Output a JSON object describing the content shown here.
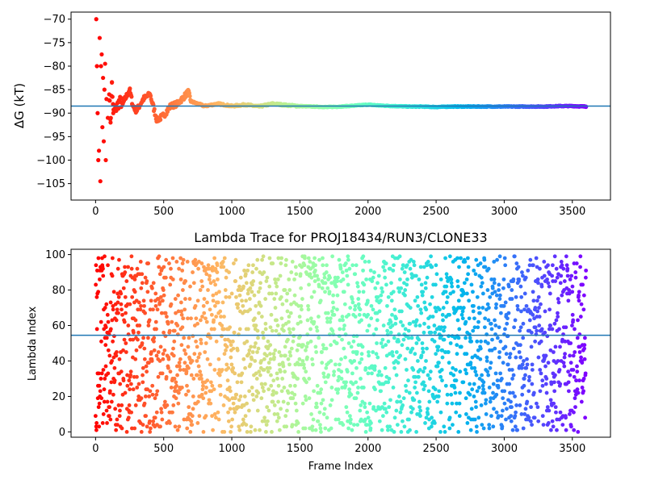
{
  "chart_data": [
    {
      "type": "scatter",
      "title": "",
      "xlabel": "",
      "ylabel": "ΔG (kT)",
      "xlim": [
        -180,
        3780
      ],
      "ylim": [
        -108.5,
        -68.5
      ],
      "xticks": [
        0,
        500,
        1000,
        1500,
        2000,
        2500,
        3000,
        3500
      ],
      "yticks": [
        -105,
        -100,
        -95,
        -90,
        -85,
        -80,
        -75,
        -70
      ],
      "ytick_labels": [
        "−105",
        "−100",
        "−95",
        "−90",
        "−85",
        "−80",
        "−75",
        "−70"
      ],
      "reference_line_y": -88.5,
      "colormap": "rainbow (red at frame 0 to violet at last frame)",
      "series": [
        {
          "points": [
            [
              5,
              -70
            ],
            [
              10,
              -80
            ],
            [
              15,
              -90
            ],
            [
              20,
              -100
            ],
            [
              25,
              -98
            ],
            [
              30,
              -74
            ],
            [
              35,
              -104.5
            ],
            [
              40,
              -80
            ],
            [
              45,
              -77.5
            ],
            [
              50,
              -93
            ],
            [
              55,
              -82.5
            ],
            [
              60,
              -96
            ],
            [
              65,
              -85
            ],
            [
              70,
              -79.5
            ],
            [
              75,
              -100
            ],
            [
              80,
              -87
            ],
            [
              90,
              -91
            ],
            [
              100,
              -86
            ],
            [
              110,
              -92
            ],
            [
              120,
              -83.5
            ],
            [
              130,
              -90
            ],
            [
              150,
              -89
            ],
            [
              175,
              -87.5
            ],
            [
              200,
              -88
            ],
            [
              225,
              -86.5
            ],
            [
              250,
              -85
            ],
            [
              275,
              -88.5
            ],
            [
              300,
              -89.5
            ],
            [
              350,
              -87
            ],
            [
              400,
              -86
            ],
            [
              450,
              -91.5
            ],
            [
              500,
              -90.5
            ],
            [
              550,
              -88.5
            ],
            [
              600,
              -88
            ],
            [
              650,
              -86.5
            ],
            [
              680,
              -85.5
            ],
            [
              700,
              -87.5
            ],
            [
              800,
              -88.5
            ],
            [
              900,
              -88
            ],
            [
              1000,
              -88.5
            ],
            [
              1100,
              -88.2
            ],
            [
              1200,
              -88.6
            ],
            [
              1300,
              -88
            ],
            [
              1400,
              -88.3
            ],
            [
              1500,
              -88.5
            ],
            [
              1600,
              -88.6
            ],
            [
              1700,
              -88.7
            ],
            [
              1800,
              -88.6
            ],
            [
              1900,
              -88.4
            ],
            [
              2000,
              -88.2
            ],
            [
              2100,
              -88.4
            ],
            [
              2200,
              -88.5
            ],
            [
              2300,
              -88.6
            ],
            [
              2400,
              -88.6
            ],
            [
              2500,
              -88.7
            ],
            [
              2600,
              -88.6
            ],
            [
              2700,
              -88.6
            ],
            [
              2800,
              -88.6
            ],
            [
              2900,
              -88.6
            ],
            [
              3000,
              -88.6
            ],
            [
              3100,
              -88.6
            ],
            [
              3200,
              -88.6
            ],
            [
              3300,
              -88.6
            ],
            [
              3400,
              -88.5
            ],
            [
              3500,
              -88.5
            ],
            [
              3600,
              -88.6
            ]
          ]
        }
      ]
    },
    {
      "type": "scatter",
      "title": "Lambda Trace for PROJ18434/RUN3/CLONE33",
      "xlabel": "Frame Index",
      "ylabel": "Lambda Index",
      "xlim": [
        -180,
        3780
      ],
      "ylim": [
        -3,
        103
      ],
      "xticks": [
        0,
        500,
        1000,
        1500,
        2000,
        2500,
        3000,
        3500
      ],
      "yticks": [
        0,
        20,
        40,
        60,
        80,
        100
      ],
      "ytick_labels": [
        "0",
        "20",
        "40",
        "60",
        "80",
        "100"
      ],
      "reference_line_y": 54.5,
      "colormap": "rainbow (red at frame 0 to violet at last frame)",
      "frame_range": [
        0,
        3600
      ],
      "lambda_range": [
        0,
        99
      ],
      "note": "points spread roughly uniformly over lambda 0-99 across all frames"
    }
  ]
}
